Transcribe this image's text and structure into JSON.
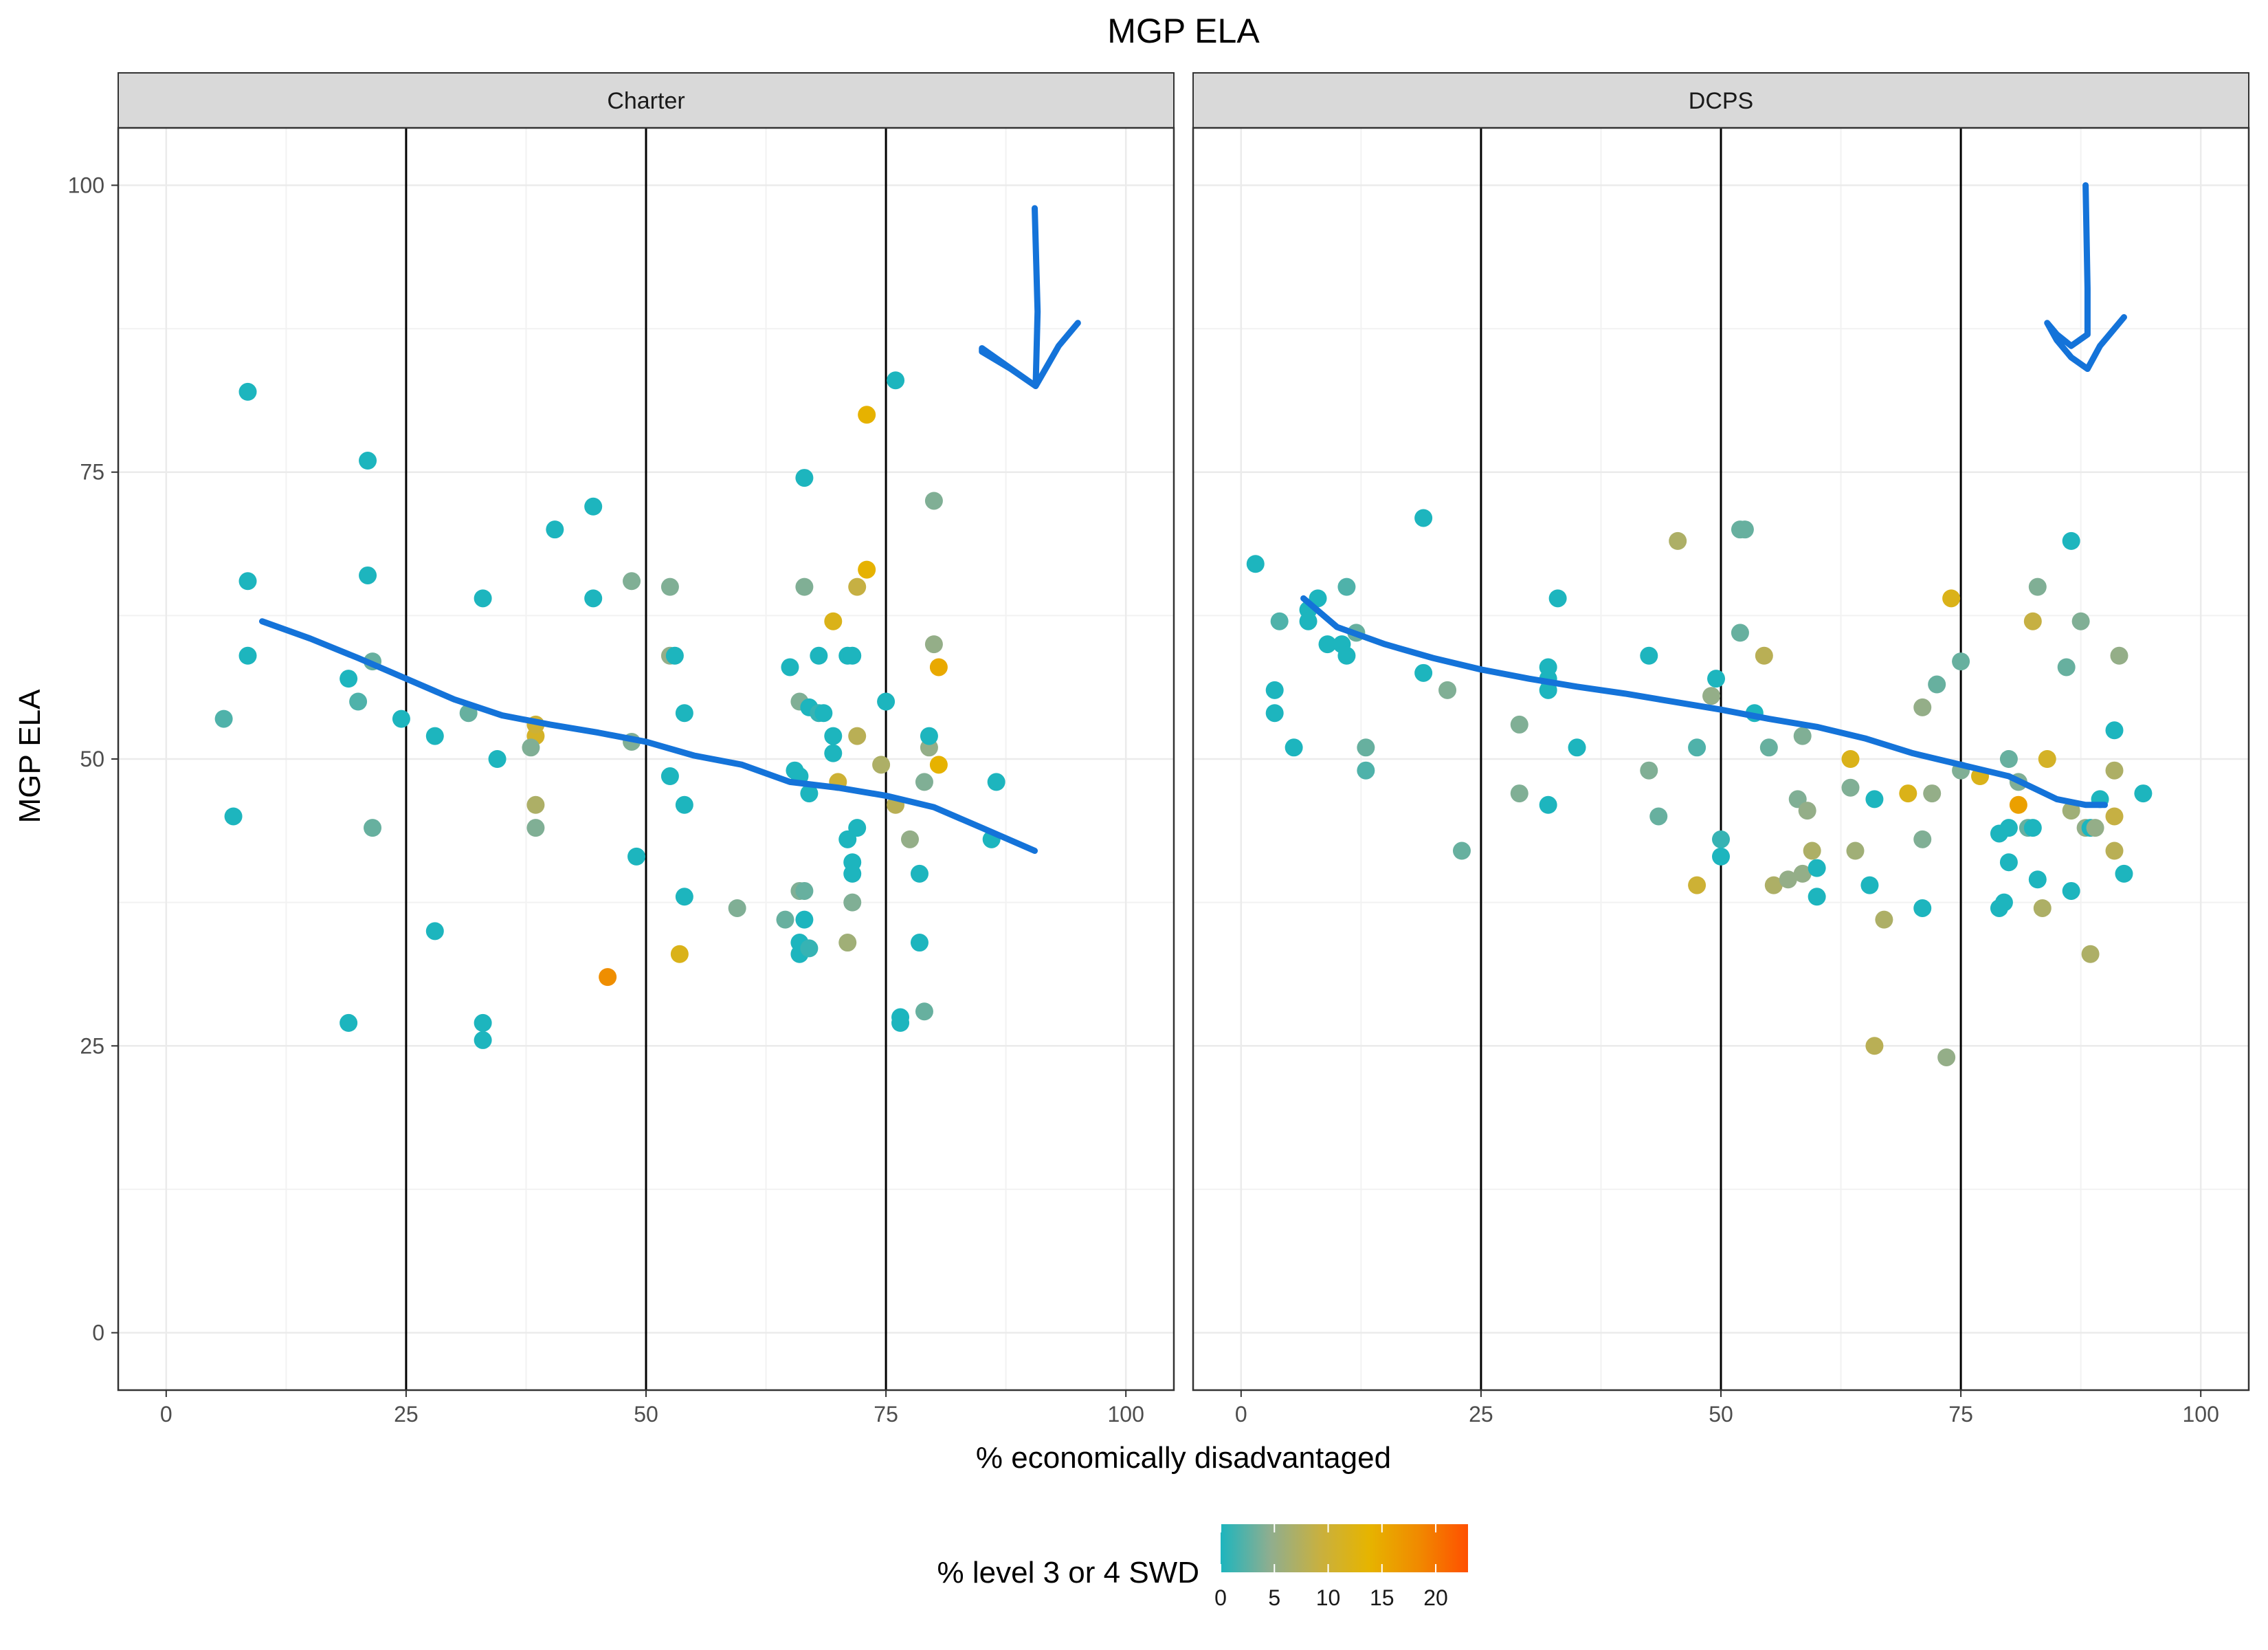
{
  "chart_data": {
    "type": "scatter",
    "title": "MGP ELA",
    "xlabel": "% economically disadvantaged",
    "ylabel": "MGP ELA",
    "xlim": [
      -5,
      105
    ],
    "ylim": [
      -5,
      105
    ],
    "x_ticks": [
      0,
      25,
      50,
      75,
      100
    ],
    "y_ticks": [
      0,
      25,
      50,
      75,
      100
    ],
    "vlines": [
      25,
      50,
      75
    ],
    "grid": true,
    "legend": {
      "title": "% level 3 or 4 SWD",
      "placement": "bottom",
      "ticks": [
        0,
        5,
        10,
        15,
        20
      ],
      "range": [
        0,
        23
      ],
      "colors": [
        "#1DB5BE",
        "#8FAE8F",
        "#C8B040",
        "#E6B400",
        "#F08A00",
        "#FF5000"
      ]
    },
    "colors": {
      "smooth_line": "#1473D9",
      "annotation_arrow": "#1473D9",
      "vline": "#000000"
    },
    "panels": [
      {
        "name": "Charter",
        "points": [
          [
            8.5,
            82,
            0
          ],
          [
            8.5,
            65.5,
            0
          ],
          [
            8.5,
            59,
            0
          ],
          [
            6,
            53.5,
            2
          ],
          [
            7,
            45,
            0
          ],
          [
            21,
            76,
            0
          ],
          [
            21,
            66,
            0
          ],
          [
            21.5,
            58.5,
            3
          ],
          [
            19,
            57,
            0
          ],
          [
            20,
            55,
            2
          ],
          [
            24.5,
            53.5,
            0
          ],
          [
            21.5,
            44,
            3
          ],
          [
            19,
            27,
            0
          ],
          [
            28,
            52,
            0
          ],
          [
            28,
            35,
            0
          ],
          [
            31.5,
            54,
            3
          ],
          [
            33,
            64,
            0
          ],
          [
            33,
            27,
            0
          ],
          [
            33,
            25.5,
            0
          ],
          [
            34.5,
            50,
            0
          ],
          [
            38.5,
            52,
            11
          ],
          [
            38.5,
            53,
            10
          ],
          [
            38,
            51,
            4
          ],
          [
            38.5,
            46,
            7
          ],
          [
            38.5,
            44,
            4
          ],
          [
            40.5,
            70,
            0
          ],
          [
            44.5,
            72,
            0
          ],
          [
            44.5,
            64,
            0
          ],
          [
            46,
            31,
            18
          ],
          [
            48.5,
            65.5,
            4
          ],
          [
            48.5,
            51.5,
            4
          ],
          [
            49,
            41.5,
            0
          ],
          [
            52.5,
            65,
            4
          ],
          [
            52.5,
            59,
            5
          ],
          [
            53,
            59,
            0
          ],
          [
            52.5,
            48.5,
            0
          ],
          [
            54,
            54,
            0
          ],
          [
            54,
            46,
            0
          ],
          [
            54,
            38,
            0
          ],
          [
            53.5,
            33,
            12
          ],
          [
            59.5,
            37,
            4
          ],
          [
            64.5,
            36,
            3
          ],
          [
            65,
            58,
            0
          ],
          [
            65.5,
            49,
            0
          ],
          [
            66,
            48.5,
            0
          ],
          [
            66.5,
            74.5,
            0
          ],
          [
            66.5,
            65,
            4
          ],
          [
            66,
            55,
            4
          ],
          [
            67,
            54.5,
            0
          ],
          [
            67,
            47,
            0
          ],
          [
            66,
            38.5,
            4
          ],
          [
            66.5,
            38.5,
            3
          ],
          [
            66.5,
            36,
            0
          ],
          [
            66,
            34,
            0
          ],
          [
            66,
            33,
            0
          ],
          [
            67,
            33.5,
            1
          ],
          [
            68,
            54,
            1
          ],
          [
            68,
            59,
            0
          ],
          [
            68.5,
            54,
            0
          ],
          [
            69.5,
            52,
            0
          ],
          [
            69.5,
            50.5,
            0
          ],
          [
            70,
            48,
            10
          ],
          [
            69.5,
            62,
            12
          ],
          [
            71,
            59,
            0
          ],
          [
            71.5,
            59,
            0
          ],
          [
            72,
            65,
            9
          ],
          [
            72,
            52,
            8
          ],
          [
            71,
            43,
            0
          ],
          [
            72,
            44,
            0
          ],
          [
            71.5,
            41,
            0
          ],
          [
            71.5,
            40,
            0
          ],
          [
            71.5,
            37.5,
            4
          ],
          [
            71,
            34,
            6
          ],
          [
            73,
            80,
            14
          ],
          [
            73,
            66.5,
            14
          ],
          [
            74.5,
            49.5,
            7
          ],
          [
            75,
            55,
            0
          ],
          [
            76,
            46,
            8
          ],
          [
            76,
            83,
            0
          ],
          [
            76.5,
            27.5,
            0
          ],
          [
            76.5,
            27,
            0
          ],
          [
            77.5,
            43,
            5
          ],
          [
            78.5,
            40,
            0
          ],
          [
            78.5,
            34,
            0
          ],
          [
            79,
            48,
            4
          ],
          [
            79.5,
            51,
            5
          ],
          [
            79.5,
            52,
            0
          ],
          [
            80,
            60,
            5
          ],
          [
            80,
            72.5,
            4
          ],
          [
            79,
            28,
            3
          ],
          [
            80.5,
            58,
            15
          ],
          [
            80.5,
            49.5,
            14
          ],
          [
            86,
            43,
            0
          ],
          [
            86.5,
            48,
            0
          ]
        ],
        "smooth": [
          [
            10,
            62
          ],
          [
            15,
            60.5
          ],
          [
            20,
            58.8
          ],
          [
            25,
            57
          ],
          [
            30,
            55.2
          ],
          [
            35,
            53.8
          ],
          [
            40,
            53
          ],
          [
            45,
            52.3
          ],
          [
            50,
            51.5
          ],
          [
            55,
            50.3
          ],
          [
            60,
            49.5
          ],
          [
            65,
            48
          ],
          [
            70,
            47.5
          ],
          [
            75,
            46.8
          ],
          [
            80,
            45.8
          ],
          [
            85,
            44
          ],
          [
            90.5,
            42
          ]
        ],
        "arrow": [
          [
            90.5,
            98
          ],
          [
            90.8,
            89
          ],
          [
            90.6,
            82.5
          ],
          [
            88,
            84
          ],
          [
            85,
            85.5
          ],
          [
            85,
            85.8
          ],
          [
            90.6,
            82.5
          ],
          [
            93,
            86
          ],
          [
            95,
            88
          ]
        ]
      },
      {
        "name": "DCPS",
        "points": [
          [
            1.5,
            67,
            0
          ],
          [
            3.5,
            56,
            0
          ],
          [
            3.5,
            54,
            0
          ],
          [
            4,
            62,
            2
          ],
          [
            5.5,
            51,
            0
          ],
          [
            7,
            63,
            0
          ],
          [
            7,
            62,
            0
          ],
          [
            8,
            64,
            0
          ],
          [
            9,
            60,
            0
          ],
          [
            10.5,
            60,
            0
          ],
          [
            11,
            59,
            0
          ],
          [
            11,
            65,
            2
          ],
          [
            12,
            61,
            3
          ],
          [
            13,
            51,
            3
          ],
          [
            13,
            49,
            2
          ],
          [
            19,
            71,
            0
          ],
          [
            19,
            57.5,
            0
          ],
          [
            21.5,
            56,
            4
          ],
          [
            23,
            42,
            3
          ],
          [
            29,
            53,
            4
          ],
          [
            29,
            47,
            4
          ],
          [
            32,
            58,
            0
          ],
          [
            32,
            57,
            0
          ],
          [
            32,
            56,
            0
          ],
          [
            32,
            46,
            0
          ],
          [
            33,
            64,
            0
          ],
          [
            35,
            51,
            0
          ],
          [
            42.5,
            59,
            0
          ],
          [
            42.5,
            49,
            4
          ],
          [
            43.5,
            45,
            3
          ],
          [
            45.5,
            69,
            7
          ],
          [
            47.5,
            51,
            2
          ],
          [
            47.5,
            39,
            10
          ],
          [
            49,
            55.5,
            5
          ],
          [
            49.5,
            57,
            0
          ],
          [
            50,
            43,
            1
          ],
          [
            50,
            41.5,
            0
          ],
          [
            52,
            70,
            3
          ],
          [
            52.5,
            70,
            3
          ],
          [
            52,
            61,
            3
          ],
          [
            53.5,
            54,
            0
          ],
          [
            54.5,
            59,
            8
          ],
          [
            55,
            51,
            3
          ],
          [
            55.5,
            39,
            7
          ],
          [
            57,
            39.5,
            5
          ],
          [
            58,
            46.5,
            4
          ],
          [
            58.5,
            40,
            5
          ],
          [
            59,
            45.5,
            5
          ],
          [
            58.5,
            52,
            4
          ],
          [
            59.5,
            42,
            7
          ],
          [
            60,
            40.5,
            0
          ],
          [
            60,
            38,
            0
          ],
          [
            63.5,
            50,
            12
          ],
          [
            63.5,
            47.5,
            4
          ],
          [
            64,
            42,
            6
          ],
          [
            65.5,
            39,
            0
          ],
          [
            66,
            46.5,
            0
          ],
          [
            66,
            25,
            8
          ],
          [
            67,
            36,
            7
          ],
          [
            69.5,
            47,
            12
          ],
          [
            71,
            54.5,
            5
          ],
          [
            71,
            43,
            4
          ],
          [
            71,
            37,
            0
          ],
          [
            72,
            47,
            5
          ],
          [
            72.5,
            56.5,
            3
          ],
          [
            73.5,
            24,
            5
          ],
          [
            74,
            64,
            12
          ],
          [
            75,
            58.5,
            3
          ],
          [
            75,
            49,
            4
          ],
          [
            77,
            48.5,
            12
          ],
          [
            79,
            43.5,
            0
          ],
          [
            79,
            37,
            0
          ],
          [
            79.5,
            37.5,
            0
          ],
          [
            80,
            50,
            3
          ],
          [
            80,
            44,
            0
          ],
          [
            80,
            41,
            0
          ],
          [
            81,
            48,
            4
          ],
          [
            81,
            46,
            16
          ],
          [
            82,
            44,
            3
          ],
          [
            82.5,
            44,
            0
          ],
          [
            82.5,
            62,
            9
          ],
          [
            83,
            65,
            4
          ],
          [
            83,
            39.5,
            0
          ],
          [
            83.5,
            37,
            7
          ],
          [
            84,
            50,
            11
          ],
          [
            86,
            58,
            3
          ],
          [
            86.5,
            69,
            0
          ],
          [
            86.5,
            45.5,
            6
          ],
          [
            86.5,
            38.5,
            0
          ],
          [
            87.5,
            62,
            4
          ],
          [
            88,
            44,
            5
          ],
          [
            88.5,
            44,
            0
          ],
          [
            88.5,
            33,
            7
          ],
          [
            89,
            44,
            5
          ],
          [
            89.5,
            46.5,
            0
          ],
          [
            91,
            52.5,
            0
          ],
          [
            91,
            49,
            7
          ],
          [
            91,
            45,
            9
          ],
          [
            91,
            42,
            8
          ],
          [
            91.5,
            59,
            5
          ],
          [
            92,
            40,
            0
          ],
          [
            94,
            47,
            0
          ]
        ],
        "smooth": [
          [
            6.5,
            64
          ],
          [
            10,
            61.5
          ],
          [
            15,
            60
          ],
          [
            20,
            58.8
          ],
          [
            25,
            57.8
          ],
          [
            30,
            57
          ],
          [
            35,
            56.3
          ],
          [
            40,
            55.7
          ],
          [
            45,
            55
          ],
          [
            50,
            54.3
          ],
          [
            55,
            53.5
          ],
          [
            60,
            52.8
          ],
          [
            65,
            51.8
          ],
          [
            70,
            50.5
          ],
          [
            75,
            49.5
          ],
          [
            80,
            48.5
          ],
          [
            85,
            46.5
          ],
          [
            88,
            46
          ],
          [
            90,
            46
          ]
        ],
        "arrow": [
          [
            88,
            100
          ],
          [
            88.2,
            91
          ],
          [
            88.2,
            87
          ],
          [
            86.5,
            86
          ],
          [
            85,
            87
          ],
          [
            84,
            88
          ],
          [
            85,
            86.5
          ],
          [
            86.5,
            85
          ],
          [
            88.2,
            84
          ],
          [
            89.5,
            86
          ],
          [
            90.5,
            87
          ],
          [
            92,
            88.5
          ]
        ]
      }
    ]
  }
}
